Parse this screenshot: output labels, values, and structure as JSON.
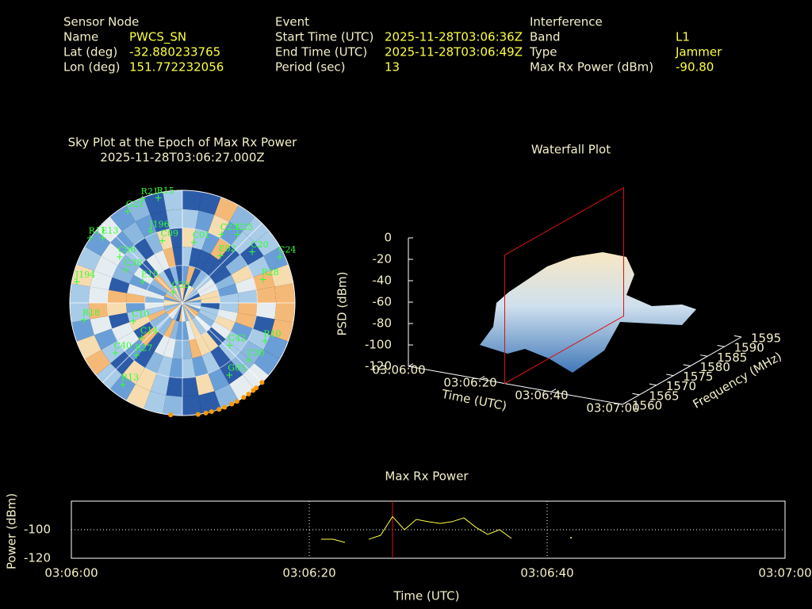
{
  "info": [
    {
      "title": "Sensor Node",
      "rows": [
        {
          "label": "Name",
          "value": "PWCS_SN"
        },
        {
          "label": "Lat (deg)",
          "value": "-32.880233765"
        },
        {
          "label": "Lon (deg)",
          "value": "151.772232056"
        }
      ]
    },
    {
      "title": "Event",
      "rows": [
        {
          "label": "Start Time (UTC)",
          "value": "2025-11-28T03:06:36Z"
        },
        {
          "label": "End Time (UTC)",
          "value": "2025-11-28T03:06:49Z"
        },
        {
          "label": "Period (sec)",
          "value": "13"
        }
      ]
    },
    {
      "title": "Interference",
      "rows": [
        {
          "label": "Band",
          "value": "L1"
        },
        {
          "label": "Type",
          "value": "Jammer"
        },
        {
          "label": "Max Rx Power (dBm)",
          "value": "-90.80"
        }
      ]
    }
  ],
  "chart_data": [
    {
      "type": "sky",
      "title": "Sky Plot at the Epoch of Max Rx Power",
      "subtitle": "2025-11-28T03:06:27.000Z",
      "sat_color": "#33ff33",
      "point_color": "#ff9900",
      "satellites": [
        {
          "name": "R21",
          "az": 339,
          "el": 1
        },
        {
          "name": "R15",
          "az": 347,
          "el": 4
        },
        {
          "name": "G21",
          "az": 329,
          "el": 5
        },
        {
          "name": "R11",
          "az": 305,
          "el": 0
        },
        {
          "name": "E13",
          "az": 309,
          "el": 8
        },
        {
          "name": "J196",
          "az": 336,
          "el": 28
        },
        {
          "name": "C09",
          "az": 342,
          "el": 38
        },
        {
          "name": "C01",
          "az": 11,
          "el": 41
        },
        {
          "name": "C23",
          "az": 30,
          "el": 27
        },
        {
          "name": "E25",
          "az": 39,
          "el": 20
        },
        {
          "name": "E02",
          "az": 39,
          "el": 42
        },
        {
          "name": "C20",
          "az": 54,
          "el": 21
        },
        {
          "name": "C24",
          "az": 65,
          "el": 4
        },
        {
          "name": "C06",
          "az": 306,
          "el": 28
        },
        {
          "name": "C38",
          "az": 300,
          "el": 38
        },
        {
          "name": "E15",
          "az": 298,
          "el": 54
        },
        {
          "name": "J194",
          "az": 281,
          "el": 4
        },
        {
          "name": "R28",
          "az": 74,
          "el": 23
        },
        {
          "name": "C33",
          "az": 319,
          "el": 79
        },
        {
          "name": "C10",
          "az": 249,
          "el": 48
        },
        {
          "name": "R18",
          "az": 260,
          "el": 10
        },
        {
          "name": "C14",
          "az": 229,
          "el": 47
        },
        {
          "name": "C42",
          "az": 132,
          "el": 39
        },
        {
          "name": "R10",
          "az": 115,
          "el": 17
        },
        {
          "name": "R27",
          "az": 221,
          "el": 34
        },
        {
          "name": "C40",
          "az": 233,
          "el": 23
        },
        {
          "name": "R13",
          "az": 216,
          "el": 9
        },
        {
          "name": "G05",
          "az": 147,
          "el": 21
        },
        {
          "name": "C30",
          "az": 131,
          "el": 20
        }
      ],
      "points_az": [
        186,
        172,
        168,
        165,
        161,
        158,
        154,
        151,
        147,
        144,
        141,
        139,
        135
      ]
    },
    {
      "type": "waterfall",
      "title": "Waterfall Plot",
      "xlabel": "Time (UTC)",
      "ylabel": "Frequency (MHz)",
      "zlabel": "PSD (dBm)",
      "xlim": [
        0,
        60
      ],
      "xticks": [
        {
          "value": 0,
          "label": "03:06:00"
        },
        {
          "value": 20,
          "label": "03:06:20"
        },
        {
          "value": 40,
          "label": "03:06:40"
        },
        {
          "value": 60,
          "label": "03:07:00"
        }
      ],
      "ylim": [
        1560,
        1595
      ],
      "yticks": [
        1560,
        1565,
        1570,
        1575,
        1580,
        1585,
        1590,
        1595
      ],
      "zlim": [
        -120,
        0
      ],
      "zticks": [
        0,
        -20,
        -40,
        -60,
        -80,
        -100,
        -120
      ],
      "marker_x": 27,
      "marker_color": "#dd1111"
    },
    {
      "type": "line",
      "title": "Max Rx Power",
      "xlabel": "Time (UTC)",
      "ylabel": "Power (dBm)",
      "xlim": [
        0,
        60
      ],
      "xticks": [
        {
          "value": 0,
          "label": "03:06:00"
        },
        {
          "value": 20,
          "label": "03:06:20"
        },
        {
          "value": 40,
          "label": "03:06:40"
        },
        {
          "value": 60,
          "label": "03:07:00"
        }
      ],
      "ylim": [
        -120,
        -80
      ],
      "yticks": [
        -100,
        -120
      ],
      "grid": true,
      "color": "#ffff40",
      "marker_x": 27,
      "marker_color": "#dd1111",
      "x": [
        21,
        22,
        23,
        24,
        25,
        26,
        27,
        28,
        29,
        30,
        31,
        32,
        33,
        34,
        35,
        36,
        37,
        38,
        42
      ],
      "values": [
        -106.7,
        -106.7,
        -108.9,
        null,
        -106.7,
        -103.9,
        -90.8,
        -100,
        -92.8,
        -94.4,
        -95.6,
        -94.4,
        -91.7,
        -98.3,
        -103.3,
        -100,
        -106.1,
        null,
        -105.6
      ]
    }
  ]
}
